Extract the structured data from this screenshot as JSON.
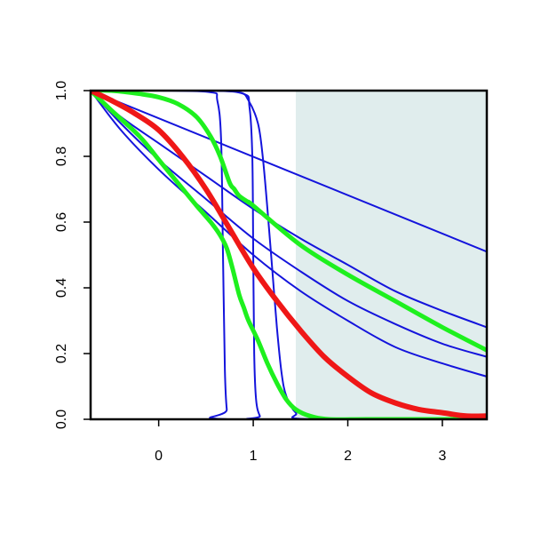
{
  "chart_data": {
    "type": "line",
    "title": "",
    "xlabel": "",
    "ylabel": "",
    "xlim": [
      -0.72,
      3.47
    ],
    "ylim": [
      0.0,
      1.0
    ],
    "x_ticks": [
      0,
      1,
      2,
      3
    ],
    "x_tick_labels": [
      "0",
      "1",
      "2",
      "3"
    ],
    "y_ticks": [
      0.0,
      0.2,
      0.4,
      0.6,
      0.8,
      1.0
    ],
    "y_tick_labels": [
      "0.0",
      "0.2",
      "0.4",
      "0.6",
      "0.8",
      "1.0"
    ],
    "grid": false,
    "legend": "none",
    "shaded_region": {
      "x_from": 1.45,
      "x_to": 3.47,
      "color": "#e0eded"
    },
    "colors": {
      "blue": "#1414dc",
      "green": "#1ef01e",
      "red": "#ef1717"
    },
    "series": [
      {
        "color": "blue",
        "width": "thin",
        "x": [
          -0.72,
          0.0,
          0.55,
          0.62,
          0.66,
          0.68,
          0.7,
          0.72,
          0.75,
          3.47
        ],
        "y": [
          1.0,
          1.0,
          0.995,
          0.97,
          0.85,
          0.5,
          0.15,
          0.03,
          0.0,
          0.0
        ]
      },
      {
        "color": "blue",
        "width": "thin",
        "x": [
          -0.72,
          0.5,
          0.9,
          0.96,
          0.99,
          1.0,
          1.01,
          1.03,
          1.07,
          1.12,
          3.47
        ],
        "y": [
          1.0,
          1.0,
          0.99,
          0.95,
          0.8,
          0.5,
          0.2,
          0.06,
          0.01,
          0.0,
          0.0
        ]
      },
      {
        "color": "blue",
        "width": "thin",
        "x": [
          -0.72,
          0.5,
          0.85,
          0.95,
          1.05,
          1.1,
          1.15,
          1.2,
          1.25,
          1.3,
          1.35,
          1.45,
          1.6,
          3.47
        ],
        "y": [
          1.0,
          1.0,
          0.995,
          0.97,
          0.9,
          0.8,
          0.64,
          0.46,
          0.28,
          0.14,
          0.07,
          0.02,
          0.0,
          0.0
        ]
      },
      {
        "color": "blue",
        "width": "thin",
        "x": [
          -0.72,
          3.47
        ],
        "y": [
          1.0,
          0.51
        ]
      },
      {
        "color": "blue",
        "width": "thin",
        "x": [
          -0.72,
          -0.4,
          0.0,
          0.5,
          1.0,
          1.5,
          2.0,
          2.5,
          3.0,
          3.47
        ],
        "y": [
          1.0,
          0.92,
          0.84,
          0.74,
          0.64,
          0.55,
          0.47,
          0.39,
          0.33,
          0.28
        ]
      },
      {
        "color": "blue",
        "width": "thin",
        "x": [
          -0.72,
          -0.4,
          0.0,
          0.5,
          1.0,
          1.5,
          2.0,
          2.5,
          3.0,
          3.47
        ],
        "y": [
          1.0,
          0.9,
          0.79,
          0.67,
          0.55,
          0.45,
          0.36,
          0.29,
          0.23,
          0.19
        ]
      },
      {
        "color": "blue",
        "width": "thin",
        "x": [
          -0.72,
          -0.4,
          0.0,
          0.5,
          1.0,
          1.5,
          2.0,
          2.5,
          3.0,
          3.47
        ],
        "y": [
          1.0,
          0.88,
          0.76,
          0.63,
          0.5,
          0.39,
          0.3,
          0.22,
          0.17,
          0.13
        ]
      },
      {
        "color": "green",
        "width": "thick",
        "x": [
          -0.72,
          -0.5,
          -0.2,
          0.0,
          0.2,
          0.4,
          0.55,
          0.65,
          0.75,
          0.8,
          0.85,
          0.95,
          1.0,
          1.5,
          2.0,
          2.5,
          3.0,
          3.47
        ],
        "y": [
          1.0,
          1.0,
          0.99,
          0.98,
          0.96,
          0.92,
          0.86,
          0.8,
          0.72,
          0.7,
          0.68,
          0.66,
          0.65,
          0.53,
          0.44,
          0.36,
          0.28,
          0.21
        ]
      },
      {
        "color": "green",
        "width": "thick",
        "x": [
          -0.72,
          -0.5,
          -0.2,
          0.0,
          0.2,
          0.4,
          0.55,
          0.65,
          0.72,
          0.78,
          0.85,
          0.9,
          0.95,
          1.05,
          1.15,
          1.25,
          1.35,
          1.45,
          1.6,
          1.8,
          2.2,
          2.8,
          3.47
        ],
        "y": [
          1.0,
          0.94,
          0.86,
          0.79,
          0.72,
          0.65,
          0.6,
          0.56,
          0.52,
          0.46,
          0.38,
          0.34,
          0.3,
          0.24,
          0.17,
          0.11,
          0.06,
          0.03,
          0.01,
          0.0,
          0.0,
          0.0,
          0.0
        ]
      },
      {
        "color": "red",
        "width": "heavy",
        "x": [
          -0.72,
          -0.5,
          -0.25,
          0.0,
          0.25,
          0.5,
          0.75,
          1.0,
          1.25,
          1.5,
          1.75,
          2.0,
          2.25,
          2.5,
          2.75,
          3.0,
          3.25,
          3.47
        ],
        "y": [
          1.0,
          0.97,
          0.93,
          0.88,
          0.8,
          0.7,
          0.58,
          0.46,
          0.36,
          0.27,
          0.19,
          0.13,
          0.08,
          0.05,
          0.03,
          0.02,
          0.01,
          0.01
        ]
      }
    ]
  }
}
